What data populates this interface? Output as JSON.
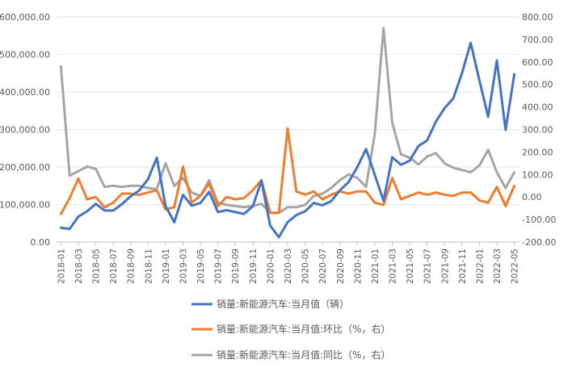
{
  "chart_data": {
    "type": "line",
    "x": [
      "2018-01",
      "2018-02",
      "2018-03",
      "2018-04",
      "2018-05",
      "2018-06",
      "2018-07",
      "2018-08",
      "2018-09",
      "2018-10",
      "2018-11",
      "2018-12",
      "2019-01",
      "2019-02",
      "2019-03",
      "2019-04",
      "2019-05",
      "2019-06",
      "2019-07",
      "2019-08",
      "2019-09",
      "2019-10",
      "2019-11",
      "2019-12",
      "2020-01",
      "2020-02",
      "2020-03",
      "2020-04",
      "2020-05",
      "2020-06",
      "2020-07",
      "2020-08",
      "2020-09",
      "2020-10",
      "2020-11",
      "2020-12",
      "2021-01",
      "2021-02",
      "2021-03",
      "2021-04",
      "2021-05",
      "2021-06",
      "2021-07",
      "2021-08",
      "2021-09",
      "2021-10",
      "2021-11",
      "2021-12",
      "2022-01",
      "2022-02",
      "2022-03",
      "2022-04",
      "2022-05"
    ],
    "x_tick_labels": [
      "2018-01",
      "2018-03",
      "2018-05",
      "2018-07",
      "2018-09",
      "2018-11",
      "2019-01",
      "2019-03",
      "2019-05",
      "2019-07",
      "2019-09",
      "2019-11",
      "2020-01",
      "2020-03",
      "2020-05",
      "2020-07",
      "2020-09",
      "2020-11",
      "2021-01",
      "2021-03",
      "2021-05",
      "2021-07",
      "2021-09",
      "2021-11",
      "2022-01",
      "2022-03",
      "2022-05"
    ],
    "y_left": {
      "ylim": [
        0,
        600000
      ],
      "ticks": [
        "0.00",
        "100,000.00",
        "200,000.00",
        "300,000.00",
        "400,000.00",
        "500,000.00",
        "600,000.00"
      ]
    },
    "y_right": {
      "ylim": [
        -200,
        800
      ],
      "ticks": [
        "-200.00",
        "-100.00",
        "0.00",
        "100.00",
        "200.00",
        "300.00",
        "400.00",
        "500.00",
        "600.00",
        "700.00",
        "800.00"
      ]
    },
    "grid": true,
    "legend_position": "bottom",
    "series": [
      {
        "name": "销量:新能源汽车:当月值（辆）",
        "axis": "left",
        "color": "#4472C4",
        "values": [
          38000,
          35000,
          68000,
          82000,
          102000,
          84000,
          84000,
          101000,
          122000,
          138000,
          168000,
          225000,
          96000,
          53000,
          126000,
          97000,
          104000,
          134000,
          80000,
          85000,
          80000,
          75000,
          95000,
          163000,
          44000,
          13000,
          53000,
          72000,
          82000,
          104000,
          98000,
          109000,
          138000,
          160000,
          200000,
          248000,
          179000,
          110000,
          226000,
          206000,
          217000,
          256000,
          271000,
          321000,
          357000,
          383000,
          450000,
          531000,
          431000,
          334000,
          484000,
          299000,
          447000
        ]
      },
      {
        "name": "销量:新能源汽车:当月值:环比（%，右）",
        "axis": "right",
        "color": "#ED7D31",
        "values": [
          -75,
          -5,
          82,
          -10,
          0,
          -45,
          -25,
          15,
          15,
          10,
          20,
          30,
          -55,
          -45,
          135,
          -25,
          5,
          60,
          -40,
          0,
          -10,
          -5,
          30,
          75,
          -70,
          -70,
          305,
          25,
          10,
          25,
          -10,
          10,
          25,
          15,
          25,
          25,
          -25,
          -35,
          85,
          -10,
          5,
          20,
          10,
          20,
          10,
          5,
          20,
          20,
          -15,
          -25,
          45,
          -40,
          50
        ]
      },
      {
        "name": "销量:新能源汽车:当月值:同比（%，右）",
        "axis": "right",
        "color": "#A5A5A5",
        "values": [
          580,
          95,
          115,
          135,
          125,
          45,
          50,
          45,
          50,
          50,
          40,
          35,
          150,
          50,
          85,
          20,
          5,
          75,
          -25,
          -35,
          -40,
          -45,
          -40,
          -30,
          -70,
          -70,
          -45,
          -45,
          -35,
          5,
          15,
          40,
          75,
          100,
          85,
          45,
          280,
          750,
          330,
          190,
          175,
          145,
          180,
          195,
          150,
          130,
          120,
          110,
          140,
          210,
          110,
          40,
          110
        ]
      }
    ]
  }
}
